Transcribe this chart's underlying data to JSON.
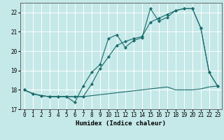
{
  "title": "",
  "xlabel": "Humidex (Indice chaleur)",
  "bg_color": "#c5e8e8",
  "line_color": "#1a6b6b",
  "grid_color": "#ffffff",
  "xmin": -0.5,
  "xmax": 23.5,
  "ymin": 17,
  "ymax": 22.5,
  "x_ticks": [
    0,
    1,
    2,
    3,
    4,
    5,
    6,
    7,
    8,
    9,
    10,
    11,
    12,
    13,
    14,
    15,
    16,
    17,
    18,
    19,
    20,
    21,
    22,
    23
  ],
  "y_ticks": [
    17,
    18,
    19,
    20,
    21,
    22
  ],
  "line1_x": [
    0,
    1,
    2,
    3,
    4,
    5,
    6,
    7,
    8,
    9,
    10,
    11,
    12,
    13,
    14,
    15,
    16,
    17,
    18,
    19,
    20,
    21,
    22,
    23
  ],
  "line1_y": [
    18.0,
    17.8,
    17.7,
    17.65,
    17.65,
    17.65,
    17.65,
    17.65,
    17.7,
    17.75,
    17.8,
    17.85,
    17.9,
    17.95,
    18.0,
    18.05,
    18.1,
    18.15,
    18.0,
    18.0,
    18.0,
    18.05,
    18.15,
    18.2
  ],
  "line2_x": [
    0,
    1,
    2,
    3,
    4,
    5,
    6,
    7,
    8,
    9,
    10,
    11,
    12,
    13,
    14,
    15,
    16,
    17,
    18,
    19,
    20,
    21,
    22,
    23
  ],
  "line2_y": [
    18.0,
    17.8,
    17.7,
    17.65,
    17.65,
    17.65,
    17.35,
    18.2,
    18.9,
    19.3,
    20.65,
    20.85,
    20.2,
    20.55,
    20.7,
    22.2,
    21.55,
    21.75,
    22.1,
    22.2,
    22.2,
    21.2,
    18.9,
    18.2
  ],
  "line3_x": [
    0,
    1,
    2,
    3,
    4,
    5,
    6,
    7,
    8,
    9,
    10,
    11,
    12,
    13,
    14,
    15,
    16,
    17,
    18,
    19,
    20,
    21,
    22,
    23
  ],
  "line3_y": [
    18.0,
    17.8,
    17.7,
    17.65,
    17.65,
    17.65,
    17.65,
    17.65,
    18.3,
    19.1,
    19.7,
    20.3,
    20.5,
    20.65,
    20.75,
    21.5,
    21.7,
    21.9,
    22.1,
    22.2,
    22.2,
    21.2,
    18.9,
    18.2
  ],
  "xlabel_fontsize": 6.5,
  "tick_fontsize": 5.5
}
